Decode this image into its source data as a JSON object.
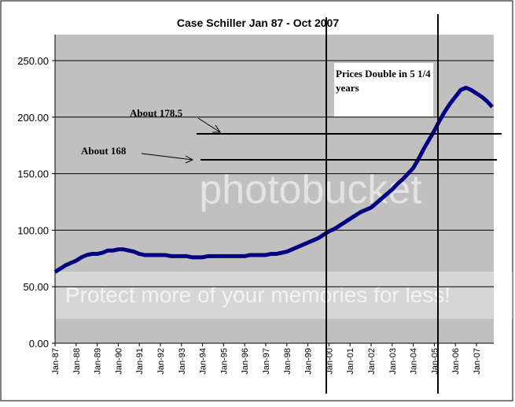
{
  "chart_data": {
    "type": "line",
    "title": "Case Schiller Jan 87 - Oct 2007",
    "categories": [
      "Jan-87",
      null,
      null,
      null,
      "Jan-88",
      null,
      null,
      null,
      "Jan-89",
      null,
      null,
      null,
      "Jan-90",
      null,
      null,
      null,
      "Jan-91",
      null,
      null,
      null,
      "Jan-92",
      null,
      null,
      null,
      "Jan-93",
      null,
      null,
      null,
      "Jan-94",
      null,
      null,
      null,
      "Jan-95",
      null,
      null,
      null,
      "Jan-96",
      null,
      null,
      null,
      "Jan-97",
      null,
      null,
      null,
      "Jan-98",
      null,
      null,
      null,
      "Jan-99",
      null,
      null,
      null,
      "Jan-00",
      null,
      null,
      null,
      "Jan-01",
      null,
      null,
      null,
      "Jan-02",
      null,
      null,
      null,
      "Jan-03",
      null,
      null,
      null,
      "Jan-04",
      null,
      null,
      null,
      "Jan-05",
      null,
      null,
      null,
      "Jan-06",
      null,
      null,
      null,
      "Jan-07",
      null,
      null,
      null
    ],
    "values": [
      63,
      66,
      69,
      71,
      73,
      76,
      78,
      79,
      79,
      80,
      82,
      82,
      83,
      83,
      82,
      81,
      79,
      78,
      78,
      78,
      78,
      78,
      77,
      77,
      77,
      77,
      76,
      76,
      76,
      77,
      77,
      77,
      77,
      77,
      77,
      77,
      77,
      78,
      78,
      78,
      78,
      79,
      79,
      80,
      81,
      83,
      85,
      87,
      89,
      91,
      93,
      96,
      99,
      101,
      104,
      107,
      110,
      113,
      116,
      118,
      120,
      124,
      128,
      132,
      136,
      141,
      145,
      150,
      155,
      163,
      172,
      180,
      188,
      197,
      205,
      212,
      218,
      224,
      226,
      224,
      221,
      218,
      214,
      209
    ],
    "color": "#000080",
    "ylim": [
      0,
      250
    ],
    "yticks": [
      {
        "value": 0,
        "label": "0.00"
      },
      {
        "value": 50,
        "label": "50.00"
      },
      {
        "value": 100,
        "label": "100.00"
      },
      {
        "value": 150,
        "label": "150.00"
      },
      {
        "value": 200,
        "label": "200.00"
      },
      {
        "value": 250,
        "label": "250.00"
      }
    ],
    "grid": true,
    "annotations": [
      "About 178.5",
      "About 168",
      "Prices Double in 5 1/4 years"
    ],
    "watermark": [
      "photobucket",
      "Protect more of your memories for less!"
    ]
  }
}
